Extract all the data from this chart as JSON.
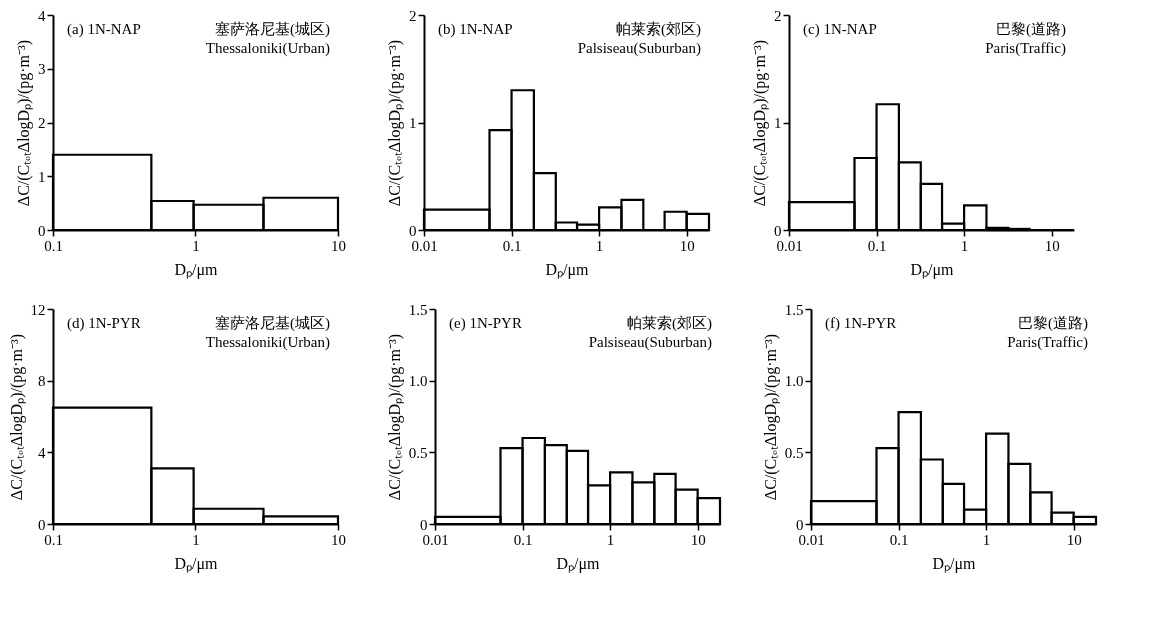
{
  "chart_data": [
    {
      "type": "histogram",
      "annotations": [
        "(a) 1N-NAP",
        "塞萨洛尼基(城区)",
        "Thessaloniki(Urban)"
      ],
      "xlabel": "Dₚ/μm",
      "ylabel": "ΔC/(CₜₒₜΔlogDₚ)/(pg·m⁻³)",
      "log": "x",
      "grid": false,
      "color": "#000000",
      "bins": [
        0.1,
        0.49,
        0.97,
        3.0,
        10
      ],
      "values": [
        1.4,
        0.54,
        0.47,
        0.6
      ],
      "xlim": [
        0.1,
        10
      ],
      "xticks": [
        0.1,
        1,
        10
      ],
      "ylim": [
        0,
        4
      ],
      "yticks": [
        0,
        1,
        2,
        3,
        4
      ]
    },
    {
      "type": "histogram",
      "annotations": [
        "(b) 1N-NAP",
        "帕莱索(郊区)",
        "Palsiseau(Suburban)"
      ],
      "xlabel": "Dₚ/μm",
      "ylabel": "ΔC/(CₜₒₜΔlogDₚ)/(pg·m⁻³)",
      "log": "x",
      "grid": false,
      "color": "#000000",
      "bins": [
        0.01,
        0.056,
        0.1,
        0.18,
        0.32,
        0.56,
        1,
        1.8,
        3.2,
        5.6,
        10,
        18
      ],
      "values": [
        0.19,
        0.93,
        1.3,
        0.53,
        0.07,
        0.05,
        0.21,
        0.28,
        0,
        0.17,
        0.15
      ],
      "xlim": [
        0.01,
        18
      ],
      "xticks": [
        0.01,
        0.1,
        1,
        10
      ],
      "ylim": [
        0,
        2
      ],
      "yticks": [
        0,
        1,
        2
      ]
    },
    {
      "type": "histogram",
      "annotations": [
        "(c) 1N-NAP",
        "巴黎(道路)",
        "Paris(Traffic)"
      ],
      "xlabel": "Dₚ/μm",
      "ylabel": "ΔC/(CₜₒₜΔlogDₚ)/(pg·m⁻³)",
      "log": "x",
      "grid": false,
      "color": "#000000",
      "bins": [
        0.01,
        0.056,
        0.1,
        0.18,
        0.32,
        0.56,
        1,
        1.8,
        3.2,
        5.6,
        10,
        18
      ],
      "values": [
        0.26,
        0.67,
        1.17,
        0.63,
        0.43,
        0.06,
        0.23,
        0.02,
        0.01,
        0,
        0
      ],
      "xlim": [
        0.01,
        18
      ],
      "xticks": [
        0.01,
        0.1,
        1,
        10
      ],
      "ylim": [
        0,
        2
      ],
      "yticks": [
        0,
        1,
        2
      ]
    },
    {
      "type": "histogram",
      "annotations": [
        "(d) 1N-PYR",
        "塞萨洛尼基(城区)",
        "Thessaloniki(Urban)"
      ],
      "xlabel": "Dₚ/μm",
      "ylabel": "ΔC/(CₜₒₜΔlogDₚ)/(pg·m⁻³)",
      "log": "x",
      "grid": false,
      "color": "#000000",
      "bins": [
        0.1,
        0.49,
        0.97,
        3.0,
        10
      ],
      "values": [
        6.5,
        3.1,
        0.85,
        0.43
      ],
      "xlim": [
        0.1,
        10
      ],
      "xticks": [
        0.1,
        1,
        10
      ],
      "ylim": [
        0,
        12
      ],
      "yticks": [
        0,
        4,
        8,
        12
      ]
    },
    {
      "type": "histogram",
      "annotations": [
        "(e) 1N-PYR",
        "帕莱索(郊区)",
        "Palsiseau(Suburban)"
      ],
      "xlabel": "Dₚ/μm",
      "ylabel": "ΔC/(CₜₒₜΔlogDₚ)/(pg·m⁻³)",
      "log": "x",
      "grid": false,
      "color": "#000000",
      "bins": [
        0.01,
        0.056,
        0.1,
        0.18,
        0.32,
        0.56,
        1,
        1.8,
        3.2,
        5.6,
        10,
        18
      ],
      "values": [
        0.05,
        0.53,
        0.6,
        0.55,
        0.51,
        0.27,
        0.36,
        0.29,
        0.35,
        0.24,
        0.18
      ],
      "xlim": [
        0.01,
        18
      ],
      "xticks": [
        0.01,
        0.1,
        1,
        10
      ],
      "ylim": [
        0,
        1.5
      ],
      "yticks": [
        0,
        0.5,
        {
          "value": 1,
          "label": "1.0"
        },
        1.5
      ]
    },
    {
      "type": "histogram",
      "annotations": [
        "(f) 1N-PYR",
        "巴黎(道路)",
        "Paris(Traffic)"
      ],
      "xlabel": "Dₚ/μm",
      "ylabel": "ΔC/(CₜₒₜΔlogDₚ)/(pg·m⁻³)",
      "log": "x",
      "grid": false,
      "color": "#000000",
      "bins": [
        0.01,
        0.056,
        0.1,
        0.18,
        0.32,
        0.56,
        1,
        1.8,
        3.2,
        5.6,
        10,
        18
      ],
      "values": [
        0.16,
        0.53,
        0.78,
        0.45,
        0.28,
        0.1,
        0.63,
        0.42,
        0.22,
        0.08,
        0.05
      ],
      "xlim": [
        0.01,
        18
      ],
      "xticks": [
        0.01,
        0.1,
        1,
        10
      ],
      "ylim": [
        0,
        1.5
      ],
      "yticks": [
        0,
        0.5,
        {
          "value": 1,
          "label": "1.0"
        },
        1.5
      ]
    }
  ]
}
